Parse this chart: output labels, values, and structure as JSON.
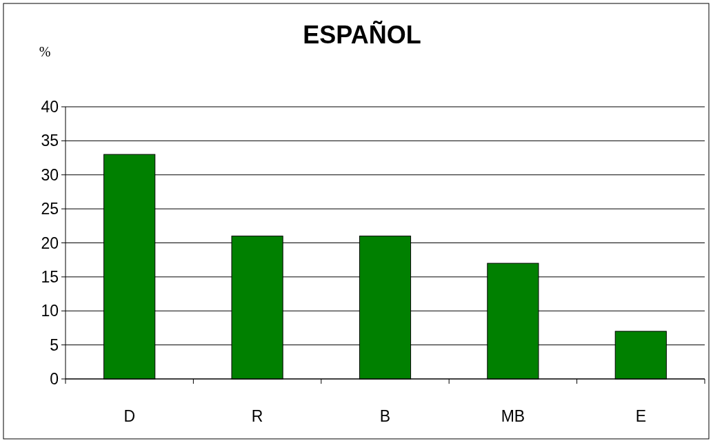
{
  "chart_data": {
    "type": "bar",
    "title": "ESPAÑOL",
    "ylabel": "%",
    "categories": [
      "D",
      "R",
      "B",
      "MB",
      "E"
    ],
    "values": [
      33,
      21,
      21,
      17,
      7
    ],
    "color": "#008000",
    "ylim": [
      0,
      40
    ],
    "yticks": [
      0,
      5,
      10,
      15,
      20,
      25,
      30,
      35,
      40
    ],
    "grid": "y"
  }
}
